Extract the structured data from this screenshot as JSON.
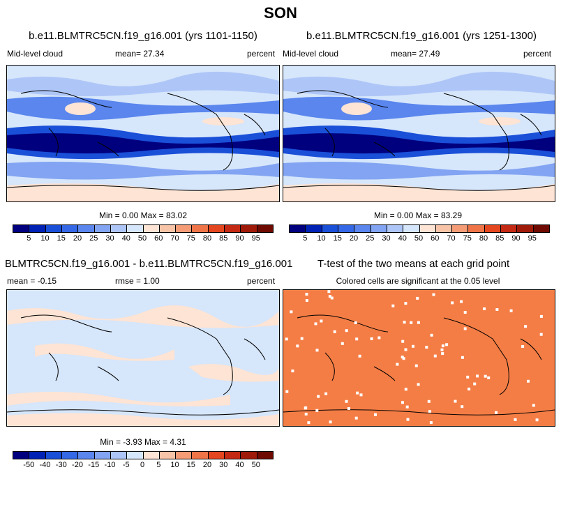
{
  "title": "SON",
  "panels": [
    {
      "title": "b.e11.BLMTRC5CN.f19_g16.001 (yrs 1101-1150)",
      "left_label": "Mid-level cloud",
      "center_label": "mean=  27.34",
      "right_label": "percent",
      "minmax": "Min =   0.00 Max =  83.02"
    },
    {
      "title": "b.e11.BLMTRC5CN.f19_g16.001 (yrs 1251-1300)",
      "left_label": "Mid-level cloud",
      "center_label": "mean=  27.49",
      "right_label": "percent",
      "minmax": "Min =   0.00 Max =  83.29"
    },
    {
      "title": "BLMTRC5CN.f19_g16.001 - b.e11.BLMTRC5CN.f19_g16.001",
      "left_label": "mean =  -0.15",
      "center_label": "rmse =   1.00",
      "right_label": "percent",
      "minmax": "Min =  -3.93 Max =   4.31"
    },
    {
      "title": "T-test of the two means at each grid point",
      "subtitle": "Colored cells are significant at the 0.05 level"
    }
  ],
  "colorbar_abs": {
    "labels": [
      "5",
      "10",
      "15",
      "20",
      "25",
      "30",
      "40",
      "50",
      "60",
      "70",
      "75",
      "80",
      "85",
      "90",
      "95"
    ],
    "colors": [
      "#00007f",
      "#0022b4",
      "#1a4fd8",
      "#3568e6",
      "#5a86ee",
      "#82a4f2",
      "#aec6f7",
      "#d6e6fb",
      "#fde4d4",
      "#f8c4a8",
      "#f59c76",
      "#ef7447",
      "#e4461f",
      "#c42914",
      "#a01a0a",
      "#6e0a02"
    ]
  },
  "colorbar_diff": {
    "labels": [
      "-50",
      "-40",
      "-30",
      "-20",
      "-15",
      "-10",
      "-5",
      "0",
      "5",
      "10",
      "15",
      "20",
      "30",
      "40",
      "50"
    ],
    "colors": [
      "#00007f",
      "#0022b4",
      "#1a4fd8",
      "#3568e6",
      "#5a86ee",
      "#82a4f2",
      "#aec6f7",
      "#d6e6fb",
      "#fde4d4",
      "#f8c4a8",
      "#f59c76",
      "#ef7447",
      "#e4461f",
      "#c42914",
      "#a01a0a",
      "#6e0a02"
    ]
  },
  "chart_data": [
    {
      "type": "heatmap",
      "title": "b.e11.BLMTRC5CN.f19_g16.001 (yrs 1101-1150)",
      "variable": "Mid-level cloud",
      "units": "percent",
      "mean": 27.34,
      "min": 0.0,
      "max": 83.02
    },
    {
      "type": "heatmap",
      "title": "b.e11.BLMTRC5CN.f19_g16.001 (yrs 1251-1300)",
      "variable": "Mid-level cloud",
      "units": "percent",
      "mean": 27.49,
      "min": 0.0,
      "max": 83.29
    },
    {
      "type": "heatmap",
      "title": "BLMTRC5CN.f19_g16.001 - b.e11.BLMTRC5CN.f19_g16.001",
      "units": "percent",
      "mean": -0.15,
      "rmse": 1.0,
      "min": -3.93,
      "max": 4.31
    },
    {
      "type": "heatmap",
      "title": "T-test of the two means at each grid point",
      "subtitle": "Colored cells are significant at the 0.05 level",
      "significance_level": 0.05
    }
  ]
}
